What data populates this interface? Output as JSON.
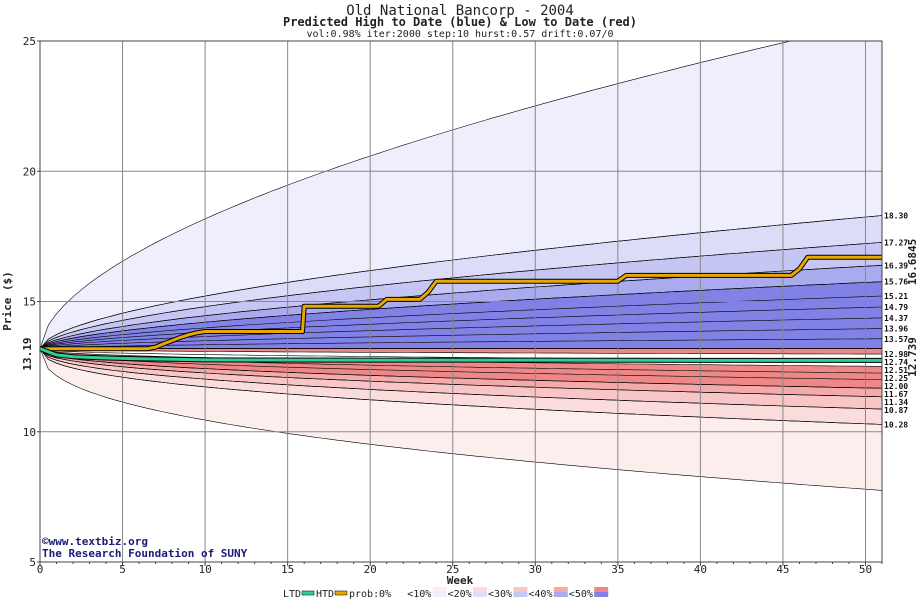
{
  "chart_data": {
    "type": "area",
    "title": "Old National Bancorp - 2004",
    "subtitle": "Predicted High to Date (blue) &  Low to Date (red)",
    "params": "vol:0.98% iter:2000 step:10 hurst:0.57 drift:0.07/0",
    "xlabel": "Week",
    "ylabel": "Price ($)",
    "xlim": [
      0,
      51
    ],
    "ylim": [
      5,
      25
    ],
    "xticks": [
      0,
      5,
      10,
      15,
      20,
      25,
      30,
      35,
      40,
      45,
      50
    ],
    "yticks": [
      5,
      10,
      15,
      20,
      25
    ],
    "grid": true,
    "start_price": 13.19,
    "start_price_label": "13.19",
    "upper_bands": [
      {
        "prob": "<10%",
        "color": "#eeeefc",
        "end": 25.8
      },
      {
        "prob": "<20%",
        "color": "#dcdcf8",
        "end": 18.3
      },
      {
        "prob": "<30%",
        "color": "#c6c6f4",
        "end": 17.27
      },
      {
        "prob": "<40%",
        "color": "#aaaaee",
        "end": 16.39
      },
      {
        "prob": "<50%",
        "color": "#8282e6",
        "end": 15.76
      }
    ],
    "lower_bands": [
      {
        "prob": "<10%",
        "color": "#fdeeee",
        "end": 7.75
      },
      {
        "prob": "<20%",
        "color": "#fbdcdc",
        "end": 10.28
      },
      {
        "prob": "<30%",
        "color": "#f8c6c6",
        "end": 10.87
      },
      {
        "prob": "<40%",
        "color": "#f4aaaa",
        "end": 11.34
      },
      {
        "prob": "<50%",
        "color": "#ee8888",
        "end": 11.67
      }
    ],
    "center_band": {
      "color": "#ffffff",
      "top": 12.98,
      "bottom": 12.51
    },
    "upper_levels": [
      18.3,
      17.27,
      16.39,
      15.76,
      15.21,
      14.79,
      14.37,
      13.96,
      13.57
    ],
    "lower_levels": [
      12.98,
      12.74,
      12.51,
      12.25,
      12.0,
      11.67,
      11.34,
      10.87,
      10.28
    ],
    "right_labels": [
      "18.30",
      "17.27",
      "16.39",
      "15.76",
      "15.21",
      "14.79",
      "14.37",
      "13.96",
      "13.57",
      "12.98",
      "12.74",
      "12.51",
      "12.25",
      "12.00",
      "11.67",
      "11.34",
      "10.87",
      "10.28"
    ],
    "series": [
      {
        "name": "HTD",
        "color": "#e8a800",
        "x": [
          0,
          3,
          6.5,
          7,
          7.5,
          8,
          8.5,
          9,
          9.5,
          10,
          15.9,
          16,
          20.5,
          21,
          23,
          23.5,
          24,
          35,
          35.5,
          45.5,
          46,
          46.5,
          51
        ],
        "y": [
          13.19,
          13.19,
          13.19,
          13.25,
          13.38,
          13.5,
          13.62,
          13.72,
          13.8,
          13.85,
          13.85,
          14.82,
          14.82,
          15.08,
          15.08,
          15.35,
          15.78,
          15.78,
          16.0,
          16.0,
          16.25,
          16.7,
          16.7
        ]
      },
      {
        "name": "LTD",
        "color": "#2ecf96",
        "x": [
          0,
          1,
          2,
          4,
          6,
          8,
          10,
          20,
          30,
          40,
          51
        ],
        "y": [
          13.19,
          12.95,
          12.88,
          12.83,
          12.8,
          12.78,
          12.76,
          12.75,
          12.75,
          12.74,
          12.739
        ]
      }
    ],
    "htd_end_label": "16.6845",
    "ltd_end_label": "12.739",
    "label_colors": {
      "start": "#1f7a5c",
      "htd": "#b8860b",
      "ltd": "#1f9a7a"
    }
  },
  "credit": {
    "copyright_symbol": "©",
    "site": "www.textbiz.org",
    "org": "The Research Foundation of SUNY"
  },
  "legend": {
    "ltd_label": "LTD",
    "htd_label": "HTD",
    "prob_label": "prob:",
    "items": [
      {
        "label": "0%",
        "colors": [
          "#ffffff",
          "#ffffff"
        ]
      },
      {
        "label": "<10%",
        "colors": [
          "#fdeeee",
          "#eeeefc"
        ]
      },
      {
        "label": "<20%",
        "colors": [
          "#fbdcdc",
          "#dcdcf8"
        ]
      },
      {
        "label": "<30%",
        "colors": [
          "#f8c6c6",
          "#c6c6f4"
        ]
      },
      {
        "label": "<40%",
        "colors": [
          "#f4aaaa",
          "#aaaaee"
        ]
      },
      {
        "label": "<50%",
        "colors": [
          "#ee8888",
          "#8282e6"
        ]
      }
    ]
  }
}
